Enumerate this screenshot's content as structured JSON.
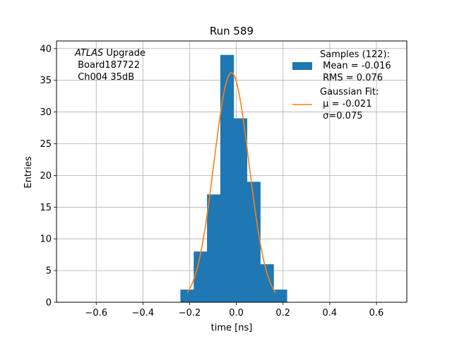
{
  "chart_data": {
    "type": "bar",
    "title": "Run 589",
    "xlabel": "time [ns]",
    "ylabel": "Entries",
    "xlim": [
      -0.77,
      0.73
    ],
    "ylim": [
      0,
      41.2
    ],
    "xticks": [
      -0.6,
      -0.4,
      -0.2,
      0.0,
      0.2,
      0.4,
      0.6
    ],
    "xtick_labels": [
      "−0.6",
      "−0.4",
      "−0.2",
      "0.0",
      "0.2",
      "0.4",
      "0.6"
    ],
    "yticks": [
      0,
      5,
      10,
      15,
      20,
      25,
      30,
      35,
      40
    ],
    "ytick_labels": [
      "0",
      "5",
      "10",
      "15",
      "20",
      "25",
      "30",
      "35",
      "40"
    ],
    "grid": true,
    "histogram": {
      "name": "Samples (122):",
      "color": "#1f77b4",
      "bin_edges": [
        -0.2395,
        -0.1825,
        -0.1255,
        -0.0685,
        -0.0115,
        0.0455,
        0.1025,
        0.1595,
        0.2165
      ],
      "counts": [
        2,
        8,
        17,
        39,
        29,
        19,
        6,
        2
      ]
    },
    "fit": {
      "name": "Gaussian Fit:",
      "color": "#ff7f0e",
      "amplitude": 36.2,
      "mu": -0.021,
      "sigma": 0.075,
      "x_range": [
        -0.21,
        0.168
      ]
    },
    "legend": {
      "placement": "top-right",
      "samples_lines": [
        "Samples (122):",
        " Mean = -0.016",
        " RMS = 0.076"
      ],
      "fit_lines": [
        "Gaussian Fit:",
        " μ = -0.021",
        " σ=0.075"
      ]
    },
    "annotation": {
      "lines": [
        "ATLAS Upgrade",
        " Board187722",
        " Ch004 35dB"
      ]
    }
  }
}
